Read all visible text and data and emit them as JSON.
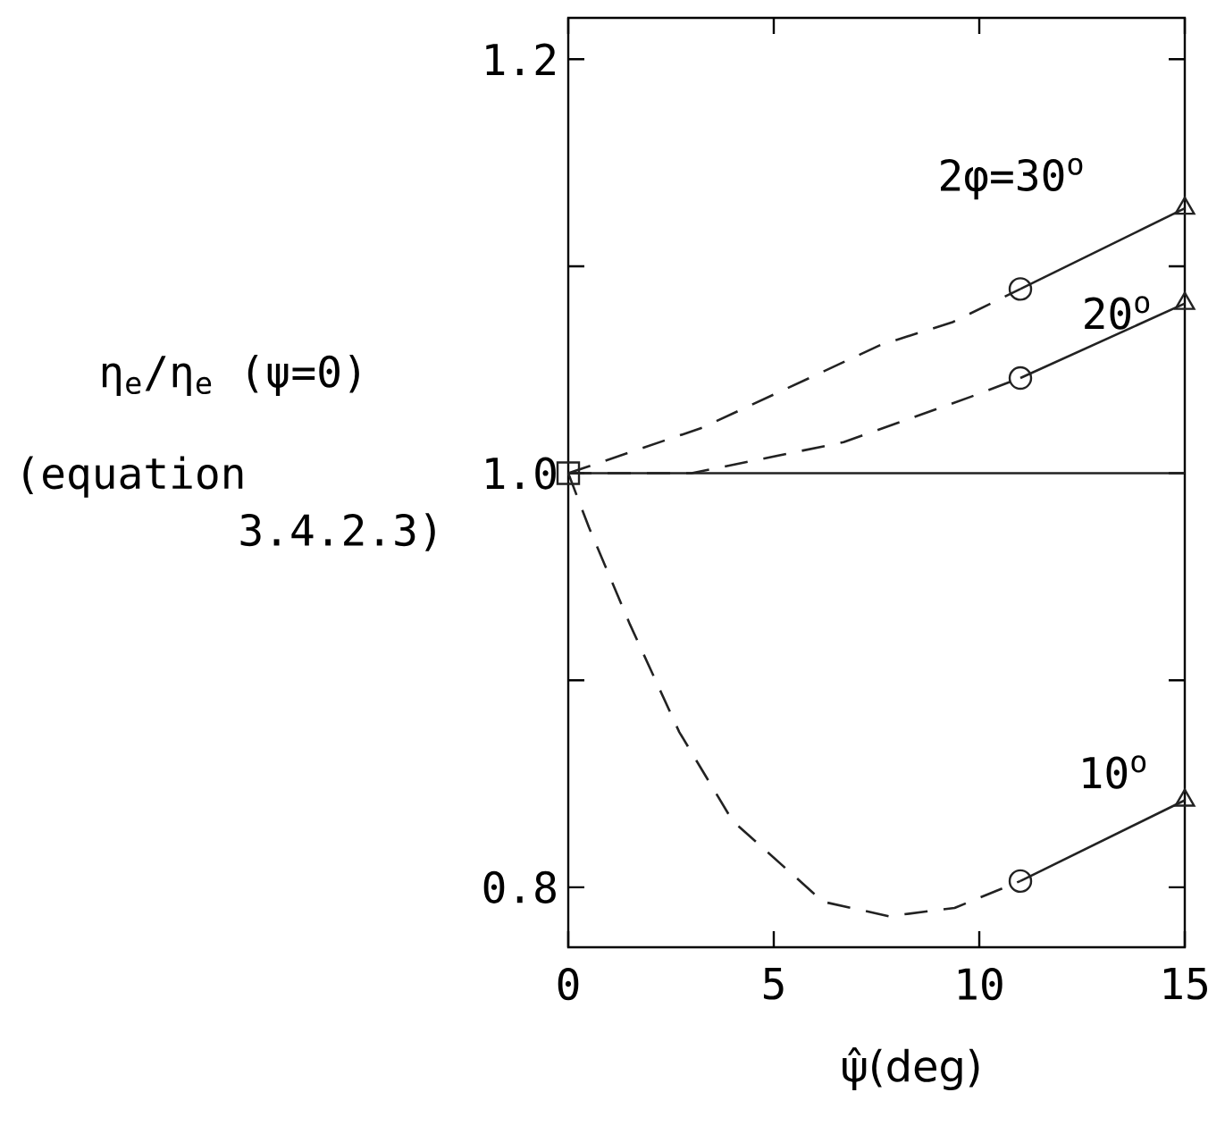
{
  "chart_data": {
    "type": "line",
    "xlabel": "ψ̂(deg)",
    "ylabel": "η$_{e}$/η$_{e}$ (ψ=0)",
    "xlim": [
      0,
      15
    ],
    "ylim": [
      0.771,
      1.22
    ],
    "xticks": [
      0,
      5,
      10,
      15
    ],
    "yticks": [
      0.8,
      {
        "value": 0.9,
        "label": null
      },
      {
        "value": 1.0,
        "label": "1.0"
      },
      {
        "value": 1.1,
        "label": null
      },
      1.2
    ],
    "ref_lines": [
      {
        "axis": "y",
        "value": 1.0,
        "color": "#222222",
        "line_style": "solid"
      }
    ],
    "series": [
      {
        "line_style": "dashed",
        "marker": "none",
        "color": "#222222",
        "x": [
          0,
          3.26,
          7.6,
          9.35,
          11
        ],
        "values": [
          1.0,
          1.022,
          1.062,
          1.073,
          1.089
        ]
      },
      {
        "line_style": "solid",
        "marker": "none",
        "color": "#222222",
        "x": [
          11,
          15
        ],
        "values": [
          1.089,
          1.128
        ]
      },
      {
        "line_style": "dashed",
        "marker": "none",
        "color": "#222222",
        "x": [
          0,
          3,
          6.7,
          9.8,
          11
        ],
        "values": [
          1.0,
          1.0,
          1.015,
          1.037,
          1.046
        ]
      },
      {
        "line_style": "solid",
        "marker": "none",
        "color": "#222222",
        "x": [
          11,
          15
        ],
        "values": [
          1.046,
          1.082
        ]
      },
      {
        "line_style": "dashed",
        "marker": "none",
        "color": "#222222",
        "x": [
          0,
          0.5,
          1.5,
          2.7,
          4.0,
          6.2,
          7.8,
          9.4,
          11
        ],
        "values": [
          1.0,
          0.974,
          0.927,
          0.875,
          0.832,
          0.793,
          0.786,
          0.79,
          0.803
        ]
      },
      {
        "line_style": "solid",
        "marker": "none",
        "color": "#222222",
        "x": [
          11,
          15
        ],
        "values": [
          0.803,
          0.842
        ]
      },
      {
        "type": "scatter",
        "marker": "circle",
        "color": "#222222",
        "x": [
          11,
          11,
          11
        ],
        "values": [
          1.089,
          1.046,
          0.803
        ]
      },
      {
        "type": "scatter",
        "marker": "triangle",
        "color": "#222222",
        "x": [
          15,
          15,
          15
        ],
        "values": [
          1.128,
          1.082,
          0.842
        ]
      },
      {
        "type": "scatter",
        "marker": "square",
        "color": "#222222",
        "x": [
          0
        ],
        "values": [
          1.0
        ]
      }
    ],
    "annotations": [
      "2φ=30$^{o}$",
      "20$^{o}$",
      "10$^{o}$",
      "(equation 3.4.2.3)"
    ]
  }
}
